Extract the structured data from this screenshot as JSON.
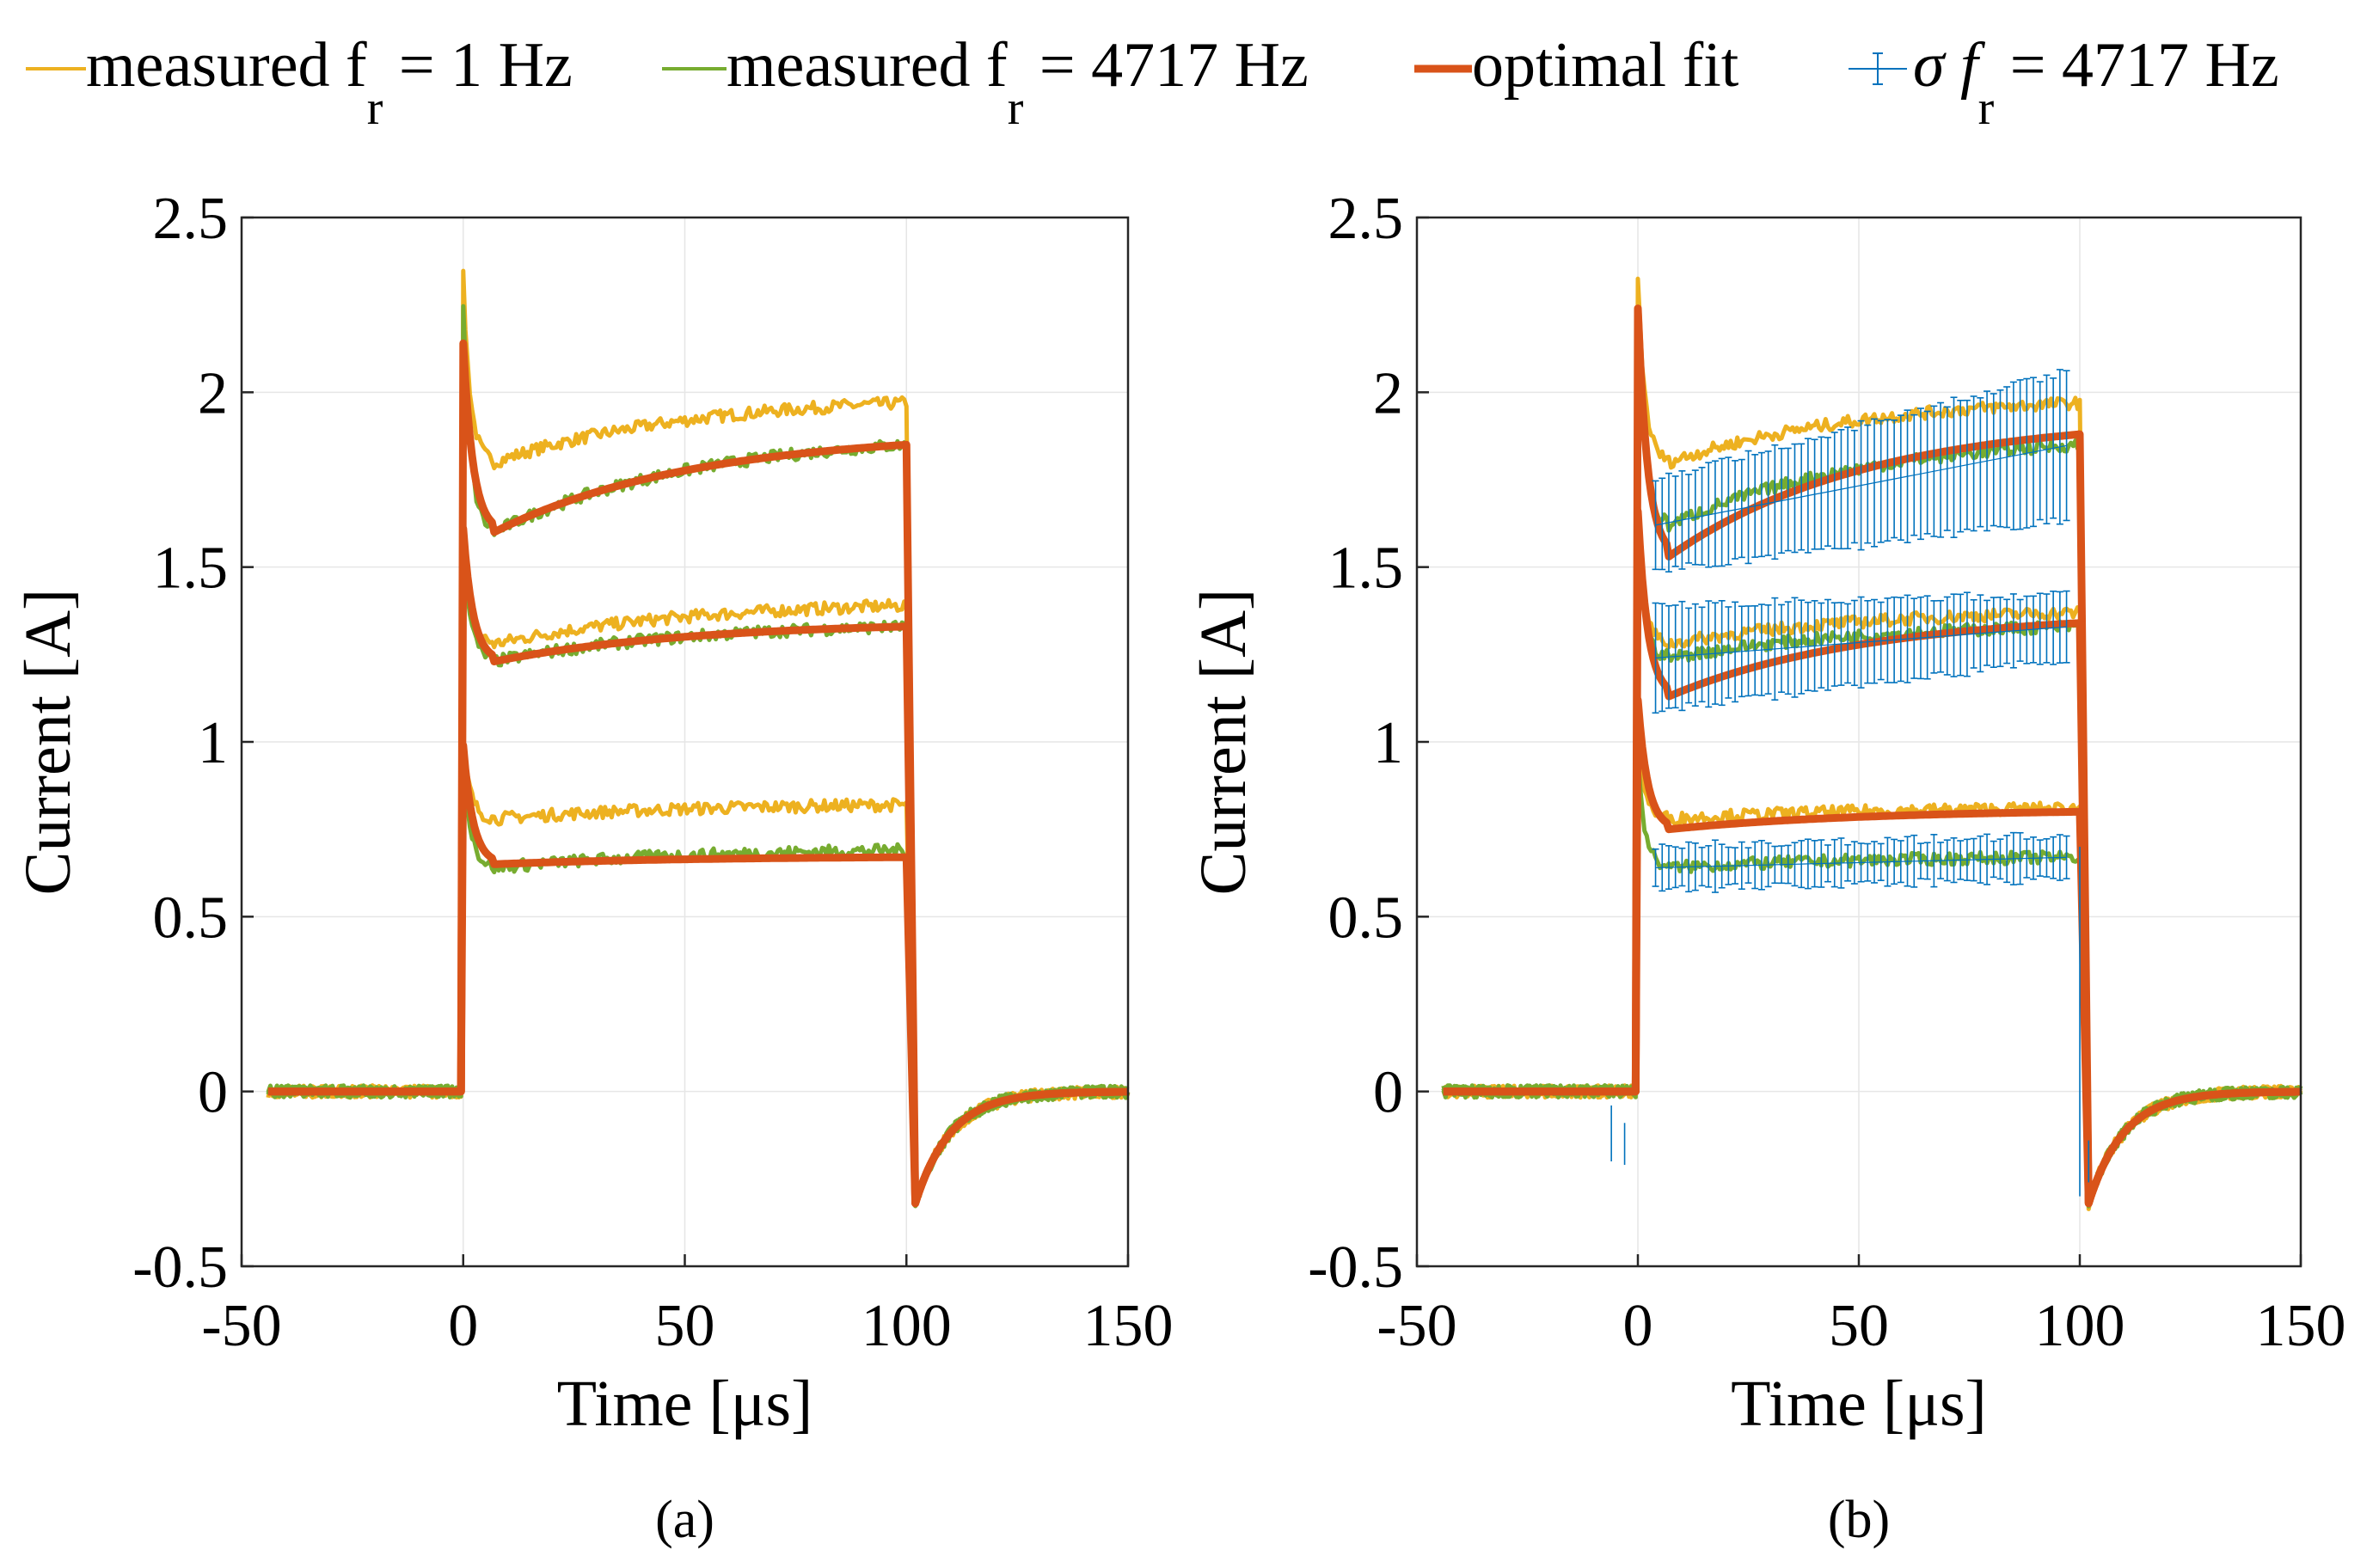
{
  "legend": {
    "items": [
      {
        "key": "measured_1hz",
        "text": "measured f",
        "sub": "r",
        "rest": " = 1 Hz",
        "color": "#EDB120"
      },
      {
        "key": "measured_4717hz",
        "text": "measured f",
        "sub": "r",
        "rest": " = 4717 Hz",
        "color": "#77AC30"
      },
      {
        "key": "optimal_fit",
        "text": "optimal fit",
        "sub": "",
        "rest": "",
        "color": "#D95319"
      },
      {
        "key": "sigma",
        "text": "σ f",
        "sub": "r",
        "rest": " = 4717 Hz",
        "color": "#0072BD"
      }
    ]
  },
  "chart_data": [
    {
      "type": "line",
      "panel_label": "(a)",
      "xlabel": "Time [μs]",
      "ylabel": "Current [A]",
      "xlim": [
        -50,
        150
      ],
      "ylim": [
        -0.5,
        2.5
      ],
      "xticks": [
        -50,
        0,
        50,
        100,
        150
      ],
      "yticks": [
        -0.5,
        0,
        0.5,
        1,
        1.5,
        2,
        2.5
      ],
      "xtick_labels": [
        "-50",
        "0",
        "50",
        "100",
        "150"
      ],
      "ytick_labels": [
        "-0.5",
        "0",
        "0.5",
        "1",
        "1.5",
        "2",
        "2.5"
      ],
      "grid": true,
      "pulse": {
        "start_us": 0,
        "end_us": 100,
        "tail_min_at_us": 102,
        "tail_min_A": -0.32
      },
      "series": [
        {
          "name": "measured f_r = 1 Hz (high)",
          "style": "measured_1hz",
          "peak": 2.33,
          "dip": 1.8,
          "end": 1.97
        },
        {
          "name": "measured f_r = 1 Hz (mid)",
          "style": "measured_1hz",
          "peak": 1.62,
          "dip": 1.28,
          "end": 1.39
        },
        {
          "name": "measured f_r = 1 Hz (low)",
          "style": "measured_1hz",
          "peak": 1.0,
          "dip": 0.78,
          "end": 0.82
        },
        {
          "name": "measured f_r = 4717 Hz (high)",
          "style": "measured_4717hz",
          "peak": 2.25,
          "dip": 1.6,
          "end": 1.85
        },
        {
          "name": "measured f_r = 4717 Hz (mid)",
          "style": "measured_4717hz",
          "peak": 1.6,
          "dip": 1.23,
          "end": 1.33
        },
        {
          "name": "measured f_r = 4717 Hz (low)",
          "style": "measured_4717hz",
          "peak": 0.98,
          "dip": 0.64,
          "end": 0.69
        },
        {
          "name": "optimal fit (high)",
          "style": "optimal_fit",
          "peak": 2.14,
          "dip": 1.6,
          "end": 1.85
        },
        {
          "name": "optimal fit (mid)",
          "style": "optimal_fit",
          "peak": 1.61,
          "dip": 1.23,
          "end": 1.33
        },
        {
          "name": "optimal fit (low)",
          "style": "optimal_fit",
          "peak": 0.99,
          "dip": 0.65,
          "end": 0.67
        }
      ]
    },
    {
      "type": "line",
      "panel_label": "(b)",
      "xlabel": "Time [μs]",
      "ylabel": "Current [A]",
      "xlim": [
        -50,
        150
      ],
      "ylim": [
        -0.5,
        2.5
      ],
      "xticks": [
        -50,
        0,
        50,
        100,
        150
      ],
      "yticks": [
        -0.5,
        0,
        0.5,
        1,
        1.5,
        2,
        2.5
      ],
      "xtick_labels": [
        "-50",
        "0",
        "50",
        "100",
        "150"
      ],
      "ytick_labels": [
        "-0.5",
        "0",
        "0.5",
        "1",
        "1.5",
        "2",
        "2.5"
      ],
      "grid": true,
      "pulse": {
        "start_us": 0,
        "end_us": 100,
        "tail_min_at_us": 102,
        "tail_min_A": -0.32
      },
      "series": [
        {
          "name": "measured f_r = 1 Hz (high)",
          "style": "measured_1hz",
          "peak": 2.33,
          "dip": 1.8,
          "end": 1.97
        },
        {
          "name": "measured f_r = 1 Hz (mid)",
          "style": "measured_1hz",
          "peak": 1.6,
          "dip": 1.28,
          "end": 1.37
        },
        {
          "name": "measured f_r = 1 Hz (low)",
          "style": "measured_1hz",
          "peak": 1.0,
          "dip": 0.78,
          "end": 0.81
        },
        {
          "name": "measured f_r = 4717 Hz (high)",
          "style": "measured_4717hz",
          "peak": 2.2,
          "dip": 1.62,
          "end": 1.85
        },
        {
          "name": "measured f_r = 4717 Hz (mid)",
          "style": "measured_4717hz",
          "peak": 1.55,
          "dip": 1.24,
          "end": 1.33
        },
        {
          "name": "measured f_r = 4717 Hz (low)",
          "style": "measured_4717hz",
          "peak": 0.95,
          "dip": 0.64,
          "end": 0.67
        },
        {
          "name": "optimal fit (high)",
          "style": "optimal_fit",
          "peak": 2.24,
          "dip": 1.53,
          "end": 1.88
        },
        {
          "name": "optimal fit (mid)",
          "style": "optimal_fit",
          "peak": 1.66,
          "dip": 1.13,
          "end": 1.34
        },
        {
          "name": "optimal fit (low)",
          "style": "optimal_fit",
          "peak": 1.12,
          "dip": 0.75,
          "end": 0.8
        }
      ],
      "sigma_series": [
        {
          "name": "σ f_r = 4717 Hz (high)",
          "center": [
            1.62,
            1.85
          ],
          "half_width": [
            0.12,
            0.2
          ]
        },
        {
          "name": "σ f_r = 4717 Hz (mid)",
          "center": [
            1.24,
            1.33
          ],
          "half_width": [
            0.14,
            0.08
          ]
        },
        {
          "name": "σ f_r = 4717 Hz (low)",
          "center": [
            0.64,
            0.67
          ],
          "half_width": [
            0.05,
            0.05
          ]
        }
      ]
    }
  ]
}
